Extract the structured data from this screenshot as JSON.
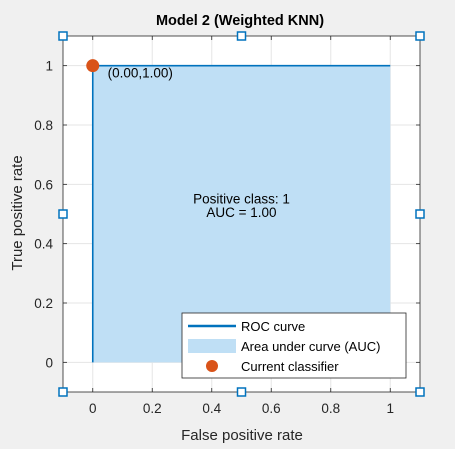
{
  "chart_data": {
    "type": "area",
    "title": "Model 2 (Weighted KNN)",
    "xlabel": "False positive rate",
    "ylabel": "True positive rate",
    "xlim": [
      -0.1,
      1.1
    ],
    "ylim": [
      -0.1,
      1.1
    ],
    "xticks": [
      0,
      0.2,
      0.4,
      0.6,
      0.8,
      1
    ],
    "xtick_labels": [
      "0",
      "0.2",
      "0.4",
      "0.6",
      "0.8",
      "1"
    ],
    "yticks": [
      0,
      0.2,
      0.4,
      0.6,
      0.8,
      1
    ],
    "ytick_labels": [
      "0",
      "0.2",
      "0.4",
      "0.6",
      "0.8",
      "1"
    ],
    "grid": true,
    "series": [
      {
        "name": "ROC curve",
        "kind": "line",
        "color": "#0072bd",
        "x": [
          0,
          0,
          1
        ],
        "y": [
          0,
          1,
          1
        ]
      },
      {
        "name": "Area under curve (AUC)",
        "kind": "area",
        "color": "#bfdff5",
        "x": [
          0,
          0,
          1,
          1
        ],
        "y": [
          0,
          1,
          1,
          0
        ]
      },
      {
        "name": "Current classifier",
        "kind": "marker",
        "color": "#d95319",
        "x": [
          0
        ],
        "y": [
          1
        ]
      }
    ],
    "annotations": [
      {
        "text": "(0.00,1.00)",
        "x": 0.05,
        "y": 0.96
      },
      {
        "text": "Positive class: 1",
        "x": 0.5,
        "y": 0.535
      },
      {
        "text": "AUC = 1.00",
        "x": 0.5,
        "y": 0.49
      }
    ],
    "legend_placement": "bottom-right",
    "legend": [
      "ROC curve",
      "Area under curve (AUC)",
      "Current classifier"
    ],
    "selection_handle_color": "#0072bd",
    "colors": {
      "background": "#f0f0f0",
      "axes_bg": "#ffffff",
      "grid": "#e5e5e5",
      "axis": "#262626"
    }
  }
}
